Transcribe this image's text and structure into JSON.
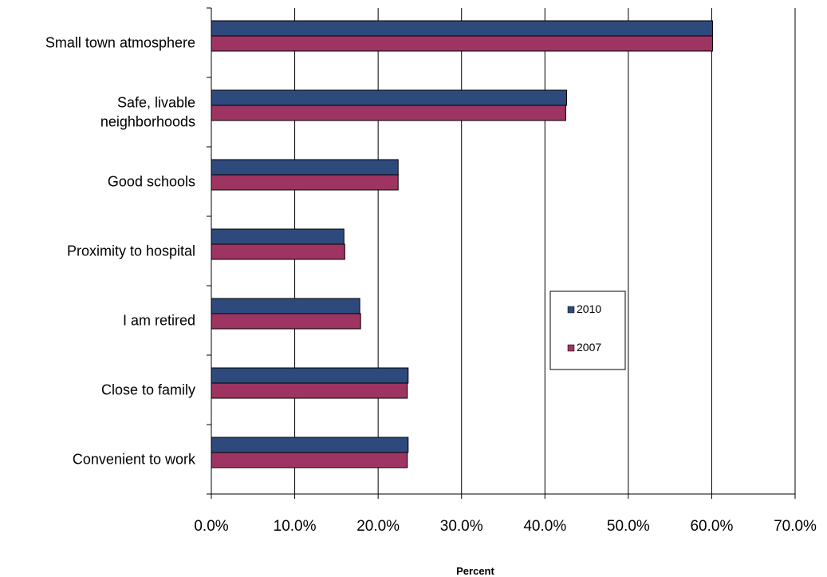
{
  "chart_data": {
    "type": "bar",
    "orientation": "horizontal",
    "categories": [
      "Small town atmosphere",
      "Safe, livable neighborhoods",
      "Good schools",
      "Proximity to hospital",
      "I am retired",
      "Close to family",
      "Convenient to work"
    ],
    "category_lines": [
      [
        "Small town atmosphere"
      ],
      [
        "Safe, livable",
        "neighborhoods"
      ],
      [
        "Good schools"
      ],
      [
        "Proximity to hospital"
      ],
      [
        "I am retired"
      ],
      [
        "Close to family"
      ],
      [
        "Convenient to work"
      ]
    ],
    "series": [
      {
        "name": "2010",
        "color": "#2E4A7D",
        "values": [
          60.1,
          42.6,
          22.4,
          15.9,
          17.8,
          23.6,
          23.6
        ]
      },
      {
        "name": "2007",
        "color": "#9E3462",
        "values": [
          60.1,
          42.5,
          22.4,
          16.0,
          17.9,
          23.5,
          23.5
        ]
      }
    ],
    "xlabel": "Percent",
    "ylabel": "",
    "xlim": [
      0,
      70
    ],
    "x_ticks": [
      0,
      10,
      20,
      30,
      40,
      50,
      60,
      70
    ],
    "x_tick_labels": [
      "0.0%",
      "10.0%",
      "20.0%",
      "30.0%",
      "40.0%",
      "50.0%",
      "60.0%",
      "70.0%"
    ],
    "grid": "vertical",
    "legend_position": "right-middle"
  }
}
